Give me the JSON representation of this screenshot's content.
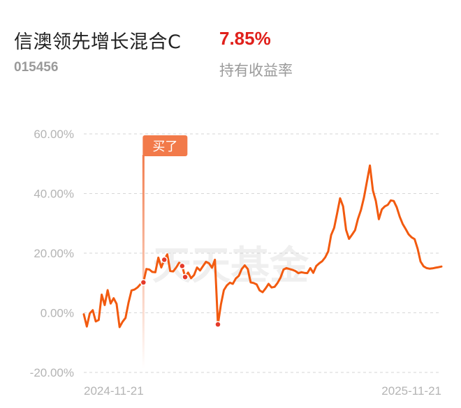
{
  "header": {
    "fund_name": "信澳领先增长混合C",
    "holding_return": "7.85%",
    "fund_code": "015456",
    "return_label": "持有收益率"
  },
  "colors": {
    "line": "#f25a0f",
    "return_value": "#e0201b",
    "buy_marker": "#f27a4a",
    "grid": "#d6d6d6",
    "tick_text": "#b4b4b4"
  },
  "watermark": "天天基金",
  "buy_marker": {
    "label": "买了",
    "x": 20
  },
  "chart_data": {
    "type": "line",
    "title": "",
    "xlabel": "",
    "ylabel": "",
    "x_tick_labels": [
      "2024-11-21",
      "2025-11-21"
    ],
    "y_tick_labels": [
      "60.00%",
      "40.00%",
      "20.00%",
      "0.00%",
      "-20.00%"
    ],
    "y_ticks": [
      60,
      40,
      20,
      0,
      -20
    ],
    "ylim": [
      -20,
      60
    ],
    "xlim": [
      0,
      120
    ],
    "grid": "horizontal dashed",
    "transaction_points_x": [
      20,
      27,
      33,
      34,
      45
    ],
    "series": [
      {
        "values": [
          -0.5,
          -4.6,
          -0.2,
          0.9,
          -2.9,
          -2.4,
          6.1,
          2.6,
          7.6,
          3.1,
          4.9,
          3.0,
          -4.8,
          -3.0,
          -1.7,
          3.4,
          7.5,
          7.8,
          8.5,
          9.6,
          10.2,
          14.7,
          14.5,
          13.7,
          13.6,
          18.5,
          15.2,
          17.8,
          19.6,
          14.0,
          13.9,
          15.2,
          16.8,
          15.7,
          12.0,
          13.5,
          11.6,
          12.7,
          15.2,
          14.2,
          15.7,
          17.1,
          16.6,
          15.1,
          17.8,
          -3.9,
          2.8,
          7.6,
          9.2,
          10.1,
          9.7,
          11.5,
          12.4,
          14.7,
          15.9,
          14.7,
          10.2,
          10.0,
          9.5,
          7.5,
          6.9,
          8.2,
          9.7,
          8.5,
          8.7,
          10.0,
          11.8,
          14.5,
          15.0,
          14.7,
          14.4,
          14.0,
          13.3,
          13.6,
          13.4,
          13.3,
          15.0,
          13.4,
          15.7,
          16.6,
          17.3,
          18.6,
          20.6,
          26.1,
          28.5,
          33.4,
          38.4,
          35.7,
          27.8,
          24.8,
          26.2,
          27.7,
          31.5,
          34.5,
          38.7,
          44.0,
          49.4,
          41.0,
          37.5,
          31.4,
          34.7,
          35.7,
          36.2,
          37.7,
          37.5,
          35.4,
          32.2,
          29.8,
          28.1,
          26.3,
          25.3,
          24.7,
          21.5,
          17.2,
          15.6,
          15.0,
          14.8,
          14.9,
          15.1,
          15.3,
          15.5
        ]
      }
    ]
  }
}
